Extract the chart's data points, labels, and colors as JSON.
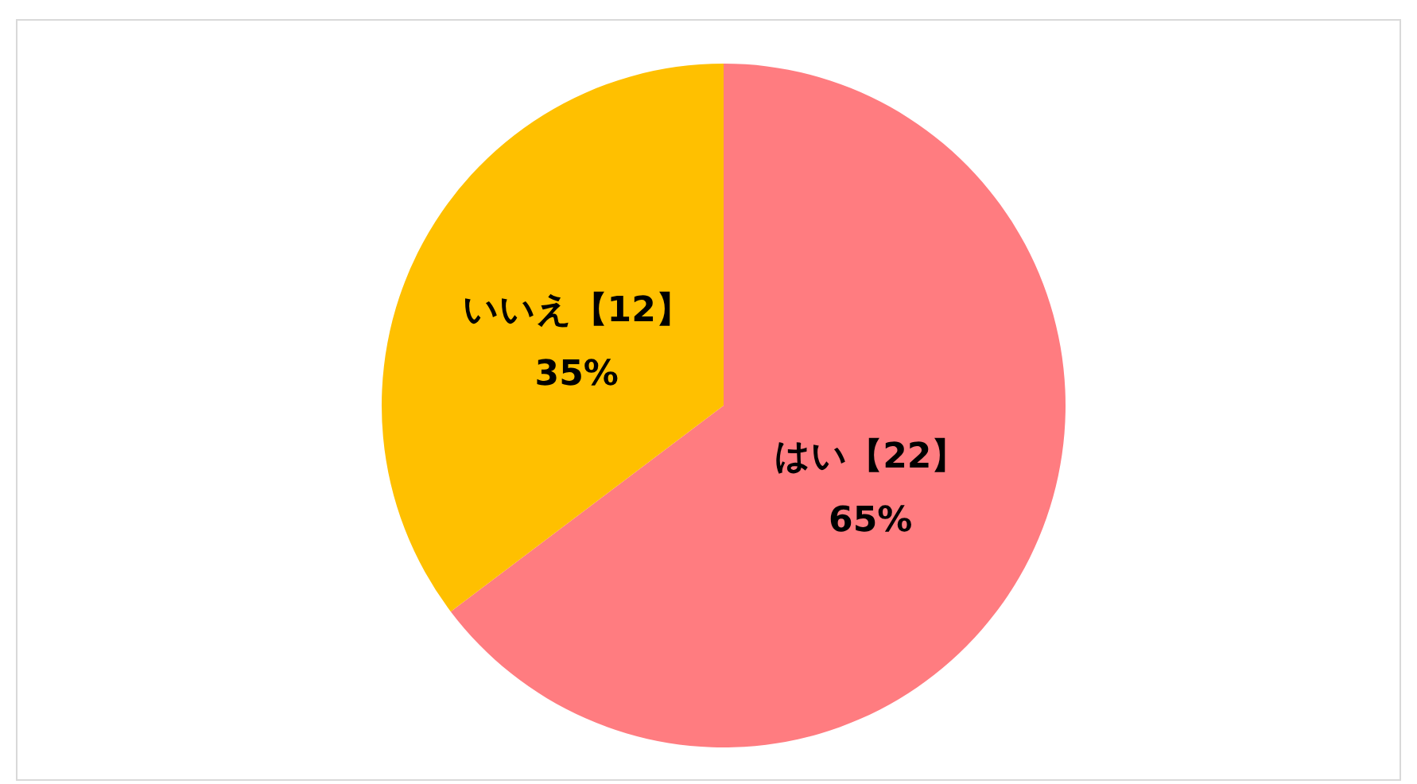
{
  "chart_data": {
    "type": "pie",
    "categories": [
      "はい",
      "いいえ"
    ],
    "values": [
      22,
      12
    ],
    "colors": [
      "#ff7c80",
      "#ffc000"
    ],
    "value_labels": [
      "【22】\n65%",
      "【12】\n35%"
    ]
  }
}
